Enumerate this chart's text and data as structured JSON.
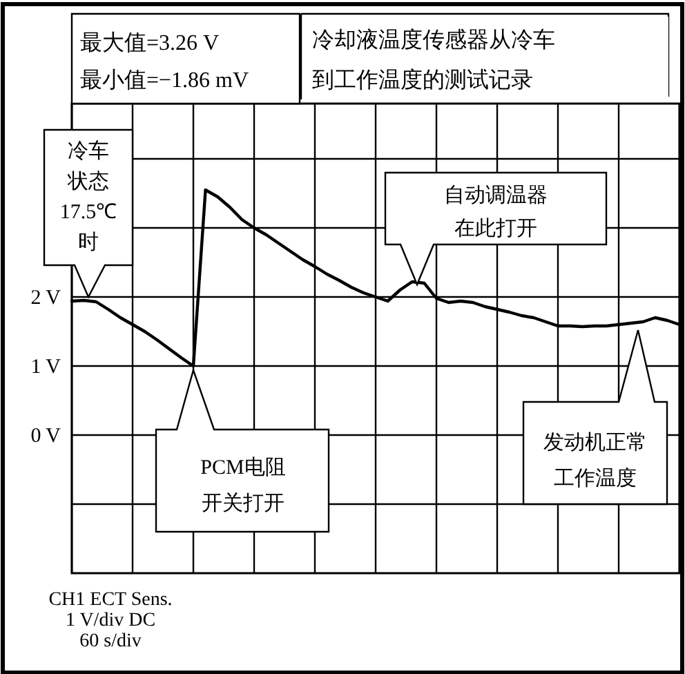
{
  "chart_data": {
    "type": "line",
    "title": "冷却液温度传感器从冷车到工作温度的测试记录",
    "categories": [
      null,
      null,
      null,
      null,
      null,
      null,
      null,
      null,
      null,
      null,
      null,
      null,
      null,
      null,
      null,
      null,
      null,
      null,
      null,
      null,
      null,
      null,
      null,
      null,
      null,
      null,
      null,
      null,
      null,
      null,
      null,
      null,
      null,
      null,
      null,
      null,
      null,
      null,
      null,
      null,
      null,
      null,
      null,
      null,
      null,
      null,
      null,
      null,
      null,
      null,
      null
    ],
    "series": [
      {
        "color": "#000000",
        "values": [
          1.94,
          1.95,
          1.93,
          1.82,
          1.7,
          1.6,
          1.5,
          1.38,
          1.25,
          1.12,
          1.0,
          3.55,
          3.45,
          3.3,
          3.12,
          3.0,
          2.9,
          2.78,
          2.66,
          2.54,
          2.44,
          2.33,
          2.24,
          2.14,
          2.06,
          2.0,
          1.94,
          2.1,
          2.22,
          2.2,
          1.98,
          1.92,
          1.94,
          1.92,
          1.86,
          1.82,
          1.78,
          1.73,
          1.7,
          1.64,
          1.58,
          1.58,
          1.57,
          1.58,
          1.58,
          1.6,
          1.62,
          1.64,
          1.7,
          1.66,
          1.6
        ]
      }
    ],
    "ylim": [
      -2,
      4.8
    ],
    "yticks": [
      {
        "value": 4,
        "label": null
      },
      {
        "value": 3,
        "label": null
      },
      {
        "value": 2,
        "label": "2 V"
      },
      {
        "value": 1,
        "label": "1 V"
      },
      {
        "value": 0,
        "label": "0 V"
      },
      {
        "value": -1,
        "label": null
      }
    ],
    "grid": true,
    "line_style": "solid",
    "annotations": [
      "最大值=3.26 V\n最小值=−1.86 mV",
      "冷车状态17.5℃时",
      "自动调温器在此打开",
      "PCM电阻开关打开",
      "发动机正常工作温度",
      "CH1 ECT Sens.\n1 V/div DC\n60 s/div"
    ]
  }
}
